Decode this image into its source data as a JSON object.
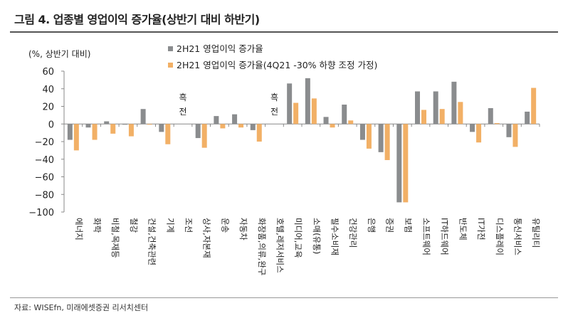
{
  "title": "그림 4. 업종별 영업이익 증가율(상반기 대비 하반기)",
  "source": "자료: WISEfn, 미래에셋증권 리서치센터",
  "chart_data": {
    "type": "bar",
    "ylabel": "(%, 상반기 대비)",
    "ylim": [
      -100,
      60
    ],
    "yticks": [
      60,
      40,
      20,
      0,
      -20,
      -40,
      -60,
      -80,
      -100
    ],
    "legend_position": "top",
    "categories": [
      "에너지",
      "화학",
      "비철,목재등",
      "철강",
      "건설,건축관련",
      "기계",
      "조선",
      "상사,자본재",
      "운송",
      "자동차",
      "화장품,의류,완구",
      "호텔,레저서비스",
      "미디어,교육",
      "소매(유통)",
      "필수소비재",
      "건강관리",
      "은행",
      "증권",
      "보험",
      "소프트웨어",
      "IT하드웨어",
      "반도체",
      "IT가전",
      "디스플레이",
      "통신서비스",
      "유틸리티"
    ],
    "series": [
      {
        "name": "2H21 영업이익 증가율",
        "color": "#8a8c8e",
        "values": [
          -18,
          -4,
          3,
          0,
          17,
          -9,
          null,
          -16,
          9,
          11,
          -7,
          null,
          46,
          52,
          8,
          22,
          -18,
          -32,
          -89,
          37,
          37,
          48,
          -9,
          18,
          -15,
          14
        ]
      },
      {
        "name": "2H21 영업이익 증가율(4Q21 -30% 하향 조정 가정)",
        "color": "#f2b066",
        "values": [
          -30,
          -18,
          -11,
          -14,
          0,
          -23,
          null,
          -27,
          -5,
          -4,
          -20,
          null,
          24,
          29,
          -4,
          4,
          -28,
          -41,
          -89,
          16,
          17,
          25,
          -21,
          1,
          -26,
          41
        ]
      }
    ],
    "annotations": [
      {
        "category": "조선",
        "text": [
          "흑",
          "전"
        ]
      },
      {
        "category": "호텔,레저서비스",
        "text": [
          "흑",
          "전"
        ]
      }
    ]
  }
}
